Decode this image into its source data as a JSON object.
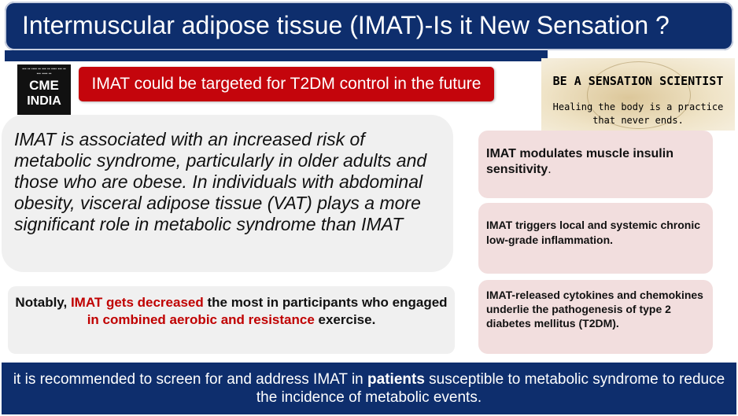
{
  "header": {
    "title": "Intermuscular adipose tissue (IMAT)-Is it New Sensation ?"
  },
  "logo": {
    "line1": "CME",
    "line2": "INDIA"
  },
  "banner": {
    "text": "IMAT could be targeted for T2DM control in the future"
  },
  "sensation_card": {
    "headline": "BE A SENSATION SCIENTIST",
    "tagline_line1": "Healing the body is a practice",
    "tagline_line2": "that never ends."
  },
  "main_point": {
    "text": "IMAT is associated with an increased risk of metabolic syndrome, particularly in older adults and those who are obese.  In individuals with abdominal obesity, visceral adipose tissue (VAT) plays a more significant role in metabolic syndrome than IMAT"
  },
  "note": {
    "part1": "Notably, ",
    "part2_red": "IMAT gets decreased",
    "part3": " the most in participants who engaged ",
    "part4_red": "in combined aerobic and resistance",
    "part5": " exercise."
  },
  "side_points": [
    {
      "bold": "IMAT",
      "text": " modulates muscle insulin sensitivity",
      "end": "."
    },
    {
      "text": "IMAT triggers local and systemic chronic low-grade inflammation."
    },
    {
      "text": "IMAT-released cytokines and chemokines underlie the pathogenesis of type 2 diabetes mellitus (T2DM)."
    }
  ],
  "footer": {
    "part1": "it is recommended to screen for and address IMAT in ",
    "part2_bold": "patients",
    "part3": " susceptible to metabolic syndrome to reduce the incidence of metabolic events."
  },
  "colors": {
    "navy": "#0e2e6d",
    "banner_red": "#c4050c",
    "highlight_red": "#c00000",
    "side_pink": "#f2dede",
    "panel_gray": "#f0f0f0"
  }
}
